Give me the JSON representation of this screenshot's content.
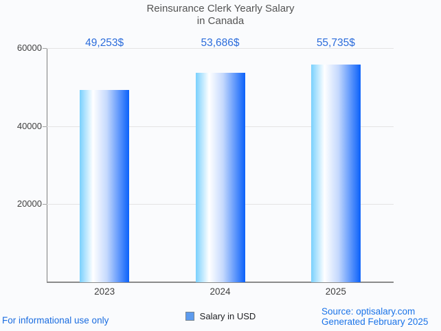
{
  "title": {
    "line1": "Reinsurance Clerk Yearly Salary",
    "line2": "in Canada"
  },
  "chart_data": {
    "type": "bar",
    "title": "Reinsurance Clerk Yearly Salary in Canada",
    "categories": [
      "2023",
      "2024",
      "2025"
    ],
    "values": [
      49253,
      53686,
      55735
    ],
    "value_labels": [
      "49,253$",
      "53,686$",
      "55,735$"
    ],
    "series_name": "Salary in USD",
    "xlabel": "",
    "ylabel": "",
    "ylim": [
      0,
      60000
    ],
    "yticks": [
      20000,
      40000,
      60000
    ],
    "ytick_labels": [
      "20000",
      "40000",
      "60000"
    ],
    "grid": true,
    "legend_position": "bottom"
  },
  "legend": {
    "label": "Salary in USD"
  },
  "footer": {
    "left": "For informational use only",
    "source": "Source: optisalary.com",
    "generated": "Generated February 2025"
  },
  "colors": {
    "background": "#fafbfd",
    "title_text": "#535353",
    "value_label_text": "#2b6cdb",
    "axis_text": "#404040",
    "gridline": "#e3e3e3",
    "axis_line": "#8a8a8a",
    "bar_gradient_left": "#79d0fd",
    "bar_gradient_white": "#ffffff",
    "bar_gradient_mid": "#c5d9fd",
    "bar_gradient_right": "#0b61fa",
    "legend_swatch": "#5d9bee",
    "footer_link": "#1a73e8"
  }
}
